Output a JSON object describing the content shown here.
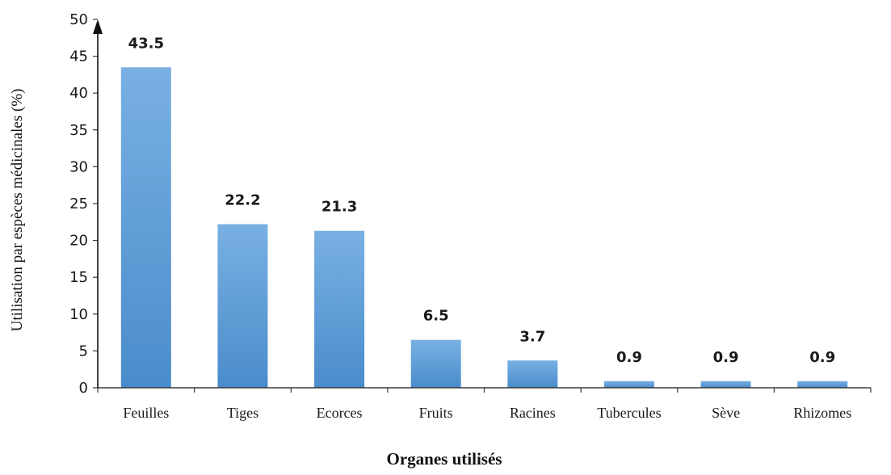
{
  "chart_data": {
    "type": "bar",
    "categories": [
      "Feuilles",
      "Tiges",
      "Ecorces",
      "Fruits",
      "Racines",
      "Tubercules",
      "Sève",
      "Rhizomes"
    ],
    "values": [
      43.5,
      22.2,
      21.3,
      6.5,
      3.7,
      0.9,
      0.9,
      0.9
    ],
    "data_labels": [
      "43.5",
      "22.2",
      "21.3",
      "6.5",
      "3.7",
      "0.9",
      "0.9",
      "0.9"
    ],
    "xlabel": "Organes utilisés",
    "ylabel": "Utilisation par espèces médicinales (%)",
    "ylim": [
      0,
      50
    ],
    "yticks": [
      0,
      5,
      10,
      15,
      20,
      25,
      30,
      35,
      40,
      45,
      50
    ],
    "grid": false,
    "bar_color": "#5b9bd5",
    "bar_color_light": "#79b0e3"
  }
}
